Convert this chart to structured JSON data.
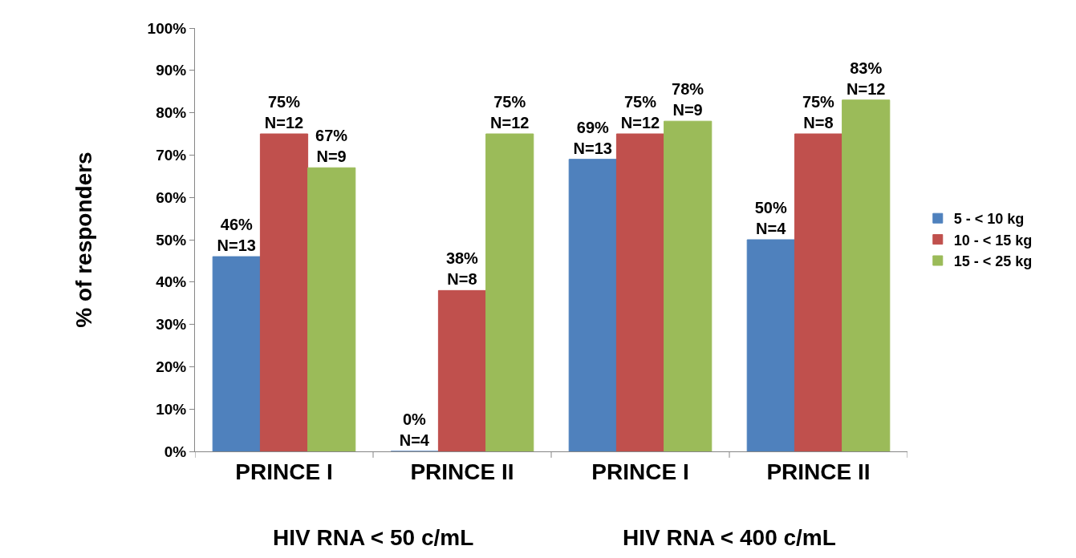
{
  "chart_data": {
    "type": "bar",
    "ylabel": "% of responders",
    "categories": [
      "PRINCE I",
      "PRINCE II",
      "PRINCE I",
      "PRINCE II"
    ],
    "series": [
      {
        "name": "5 - < 10 kg",
        "color": "#4f81bd",
        "values": [
          46,
          0,
          69,
          50
        ],
        "value_labels": [
          "46%\nN=13",
          "0%\nN=4",
          "69%\nN=13",
          "50%\nN=4"
        ]
      },
      {
        "name": "10 - < 15 kg",
        "color": "#c0504d",
        "values": [
          75,
          38,
          75,
          75
        ],
        "value_labels": [
          "75%\nN=12",
          "38%\nN=8",
          "75%\nN=12",
          "75%\nN=8"
        ]
      },
      {
        "name": "15 - < 25 kg",
        "color": "#9bbb59",
        "values": [
          67,
          75,
          78,
          83
        ],
        "value_labels": [
          "67%\nN=9",
          "75%\nN=12",
          "78%\nN=9",
          "83%\nN=12"
        ]
      }
    ],
    "ylim": [
      0,
      100
    ],
    "yticks": [
      {
        "value": 0,
        "label": "0%"
      },
      {
        "value": 10,
        "label": "10%"
      },
      {
        "value": 20,
        "label": "20%"
      },
      {
        "value": 30,
        "label": "30%"
      },
      {
        "value": 40,
        "label": "40%"
      },
      {
        "value": 50,
        "label": "50%"
      },
      {
        "value": 60,
        "label": "60%"
      },
      {
        "value": 70,
        "label": "70%"
      },
      {
        "value": 80,
        "label": "80%"
      },
      {
        "value": 90,
        "label": "90%"
      },
      {
        "value": 100,
        "label": "100%"
      }
    ],
    "annotations": [
      "HIV RNA < 50 c/mL",
      "HIV RNA < 400 c/mL"
    ],
    "legend": "right",
    "grid": false
  }
}
